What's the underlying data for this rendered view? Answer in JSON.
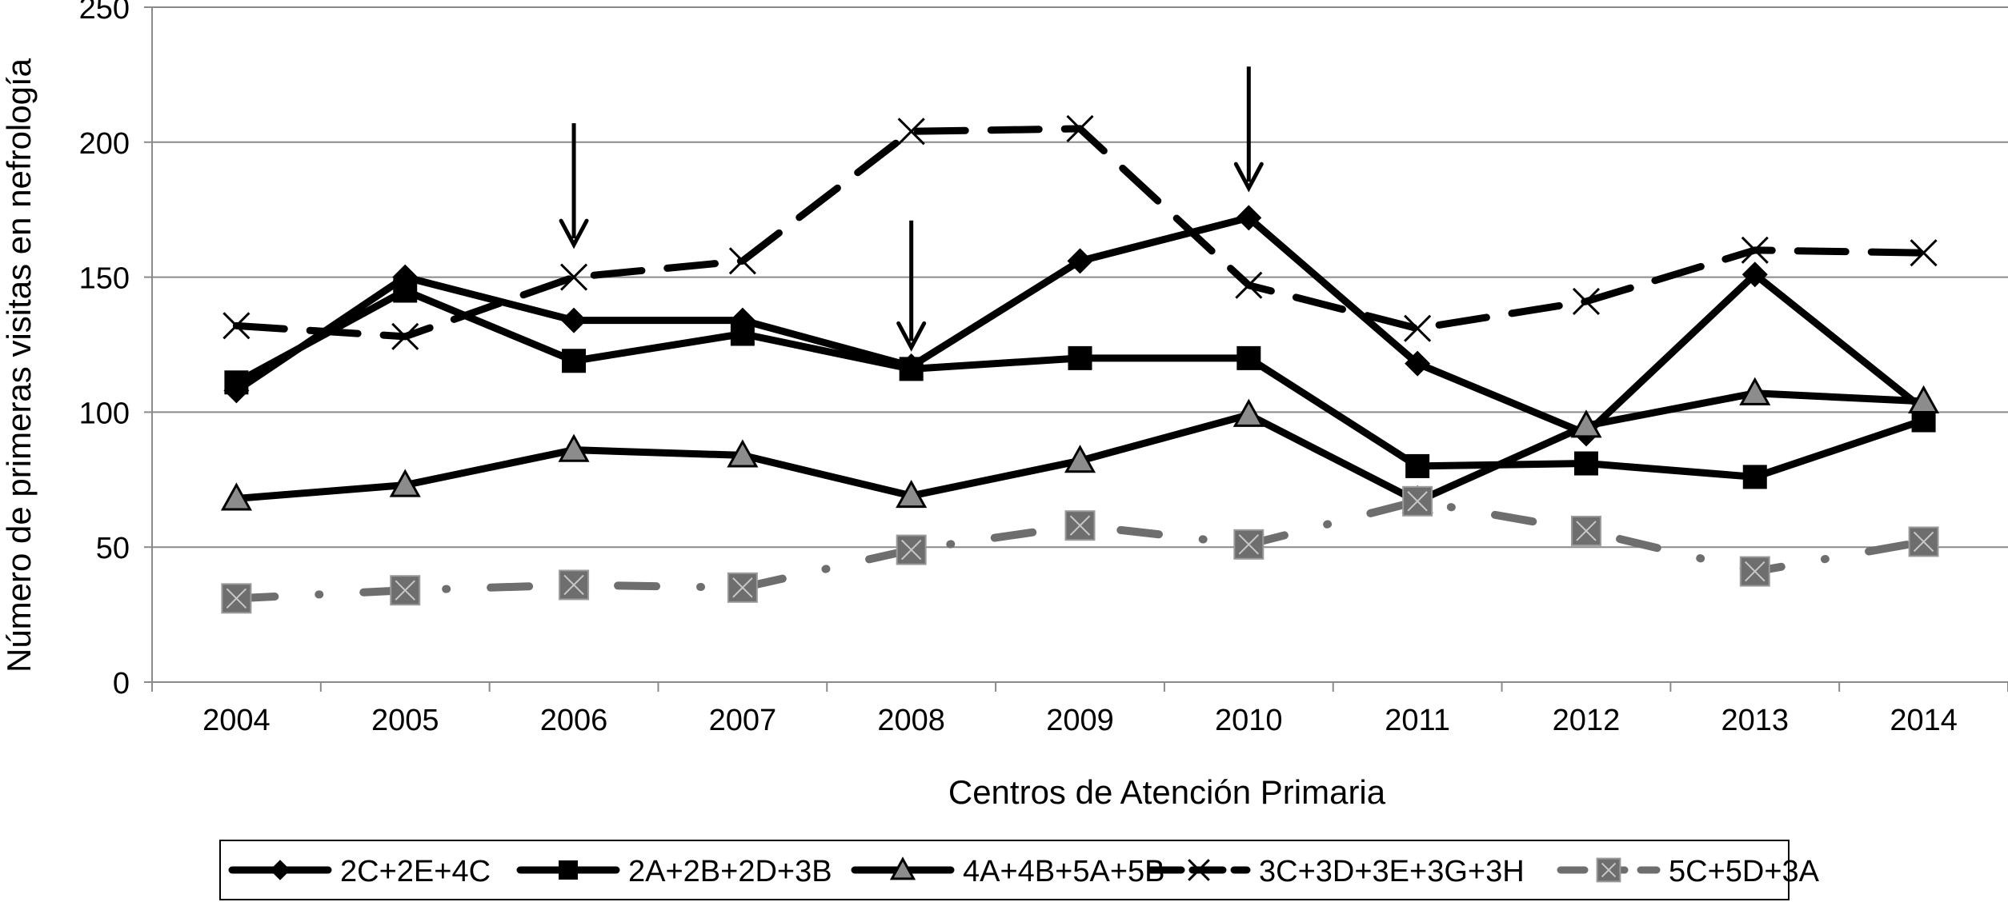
{
  "chart_data": {
    "type": "line",
    "title": "",
    "xlabel": "Centros de Atención Primaria",
    "ylabel": "Número de primeras visitas en nefrología",
    "categories": [
      "2004",
      "2005",
      "2006",
      "2007",
      "2008",
      "2009",
      "2010",
      "2011",
      "2012",
      "2013",
      "2014"
    ],
    "ylim": [
      0,
      250
    ],
    "yticks": [
      0,
      50,
      100,
      150,
      200,
      250
    ],
    "grid": "horizontal",
    "legend_position": "bottom",
    "series": [
      {
        "name": "2C+2E+4C",
        "values": [
          108,
          150,
          134,
          134,
          117,
          156,
          172,
          118,
          92,
          151,
          101
        ],
        "color": "#000000",
        "marker": "diamond",
        "dash": "solid"
      },
      {
        "name": "2A+2B+2D+3B",
        "values": [
          111,
          145,
          119,
          129,
          116,
          120,
          120,
          80,
          81,
          76,
          97
        ],
        "color": "#000000",
        "marker": "square",
        "dash": "solid"
      },
      {
        "name": "4A+4B+5A+5B",
        "values": [
          68,
          73,
          86,
          84,
          69,
          82,
          99,
          67,
          95,
          107,
          104
        ],
        "color": "#000000",
        "marker": "triangle",
        "dash": "solid"
      },
      {
        "name": "3C+3D+3E+3G+3H",
        "values": [
          132,
          128,
          150,
          156,
          204,
          205,
          147,
          131,
          141,
          160,
          159
        ],
        "color": "#000000",
        "marker": "x",
        "dash": "dash"
      },
      {
        "name": "5C+5D+3A",
        "values": [
          31,
          34,
          36,
          35,
          49,
          58,
          51,
          67,
          56,
          41,
          52
        ],
        "color": "#6e6e6e",
        "marker": "square-x",
        "dash": "dashdot"
      }
    ],
    "annotations": [
      {
        "type": "arrow",
        "x": "2006",
        "y_from": 207,
        "y_to": 162
      },
      {
        "type": "arrow",
        "x": "2008",
        "y_from": 171,
        "y_to": 124
      },
      {
        "type": "arrow",
        "x": "2010",
        "y_from": 228,
        "y_to": 183
      }
    ]
  }
}
